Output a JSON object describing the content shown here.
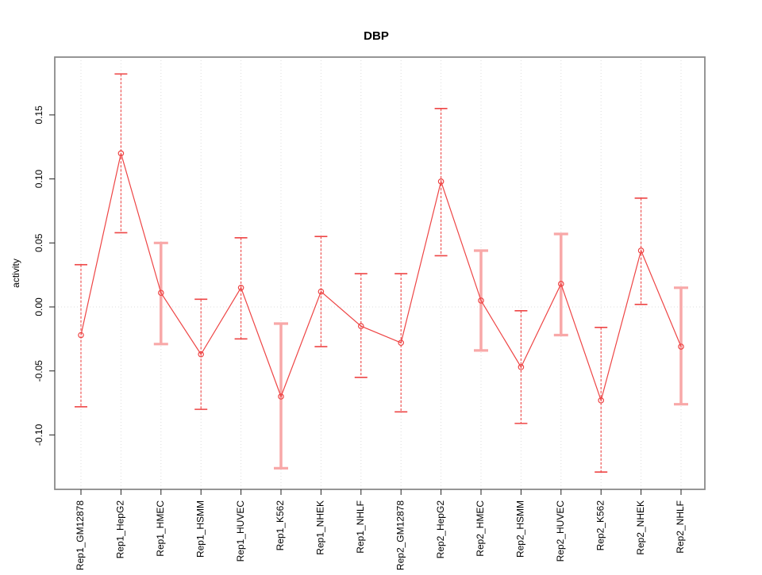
{
  "chart_data": {
    "type": "scatter",
    "title": "DBP",
    "xlabel": "",
    "ylabel": "activity",
    "legend_position": "none",
    "grid": {
      "vertical_dotted_per_category": true,
      "horizontal_dotted_at_zero": true
    },
    "ylim": [
      -0.1425,
      0.196
    ],
    "y_ticks": [
      0.15,
      0.1,
      0.05,
      0.0,
      -0.05,
      -0.1
    ],
    "y_tick_labels": [
      "0.15",
      "0.10",
      "0.05",
      "0.00",
      "-0.05",
      "-0.10"
    ],
    "categories": [
      "Rep1_GM12878",
      "Rep1_HepG2",
      "Rep1_HMEC",
      "Rep1_HSMM",
      "Rep1_HUVEC",
      "Rep1_K562",
      "Rep1_NHEK",
      "Rep1_NHLF",
      "Rep2_GM12878",
      "Rep2_HepG2",
      "Rep2_HMEC",
      "Rep2_HSMM",
      "Rep2_HUVEC",
      "Rep2_K562",
      "Rep2_NHEK",
      "Rep2_NHLF"
    ],
    "series": [
      {
        "name": "activity",
        "values": [
          -0.022,
          0.12,
          0.011,
          -0.037,
          0.015,
          -0.07,
          0.012,
          -0.015,
          -0.028,
          0.098,
          0.005,
          -0.047,
          0.018,
          -0.073,
          0.044,
          -0.031
        ],
        "error_low": [
          -0.078,
          0.058,
          -0.029,
          -0.08,
          -0.025,
          -0.126,
          -0.031,
          -0.055,
          -0.082,
          0.04,
          -0.034,
          -0.091,
          -0.022,
          -0.129,
          0.002,
          -0.076
        ],
        "error_high": [
          0.033,
          0.182,
          0.05,
          0.006,
          0.054,
          -0.013,
          0.055,
          0.026,
          0.026,
          0.155,
          0.044,
          -0.003,
          0.057,
          -0.016,
          0.085,
          0.015
        ],
        "bar_style_light": [
          false,
          false,
          true,
          false,
          false,
          true,
          false,
          false,
          false,
          false,
          true,
          false,
          true,
          false,
          false,
          true
        ]
      }
    ],
    "marker": "open-circle",
    "colors": {
      "point": "#ee4545",
      "line": "#ee4545",
      "error_bar": "#ee4545",
      "error_bar_light": "#f8a8a8",
      "gridline": "#dcdcdc",
      "frame": "#8a8a8a",
      "tick": "#222222",
      "text": "#000000"
    }
  }
}
